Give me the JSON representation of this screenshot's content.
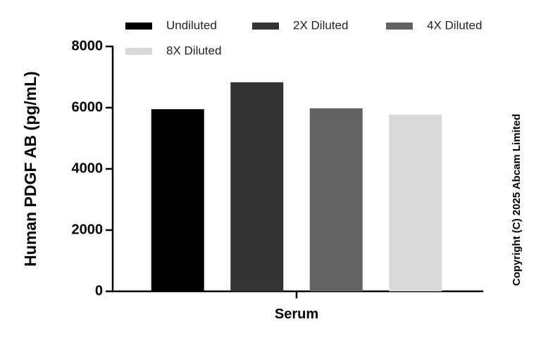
{
  "chart_data": {
    "type": "bar",
    "categories": [
      "Serum"
    ],
    "series": [
      {
        "name": "Undiluted",
        "color": "#000000",
        "values": [
          5950
        ]
      },
      {
        "name": "2X Diluted",
        "color": "#333333",
        "values": [
          6830
        ]
      },
      {
        "name": "4X Diluted",
        "color": "#636363",
        "values": [
          5980
        ]
      },
      {
        "name": "8X Diluted",
        "color": "#d9d9d9",
        "values": [
          5770
        ]
      }
    ],
    "ylabel": "Human PDGF AB (pg/mL)",
    "ylim": [
      0,
      8000
    ],
    "yticks": [
      0,
      2000,
      4000,
      6000,
      8000
    ],
    "annotations": [
      "Copyright (C) 2025 Abcam Limited"
    ]
  }
}
